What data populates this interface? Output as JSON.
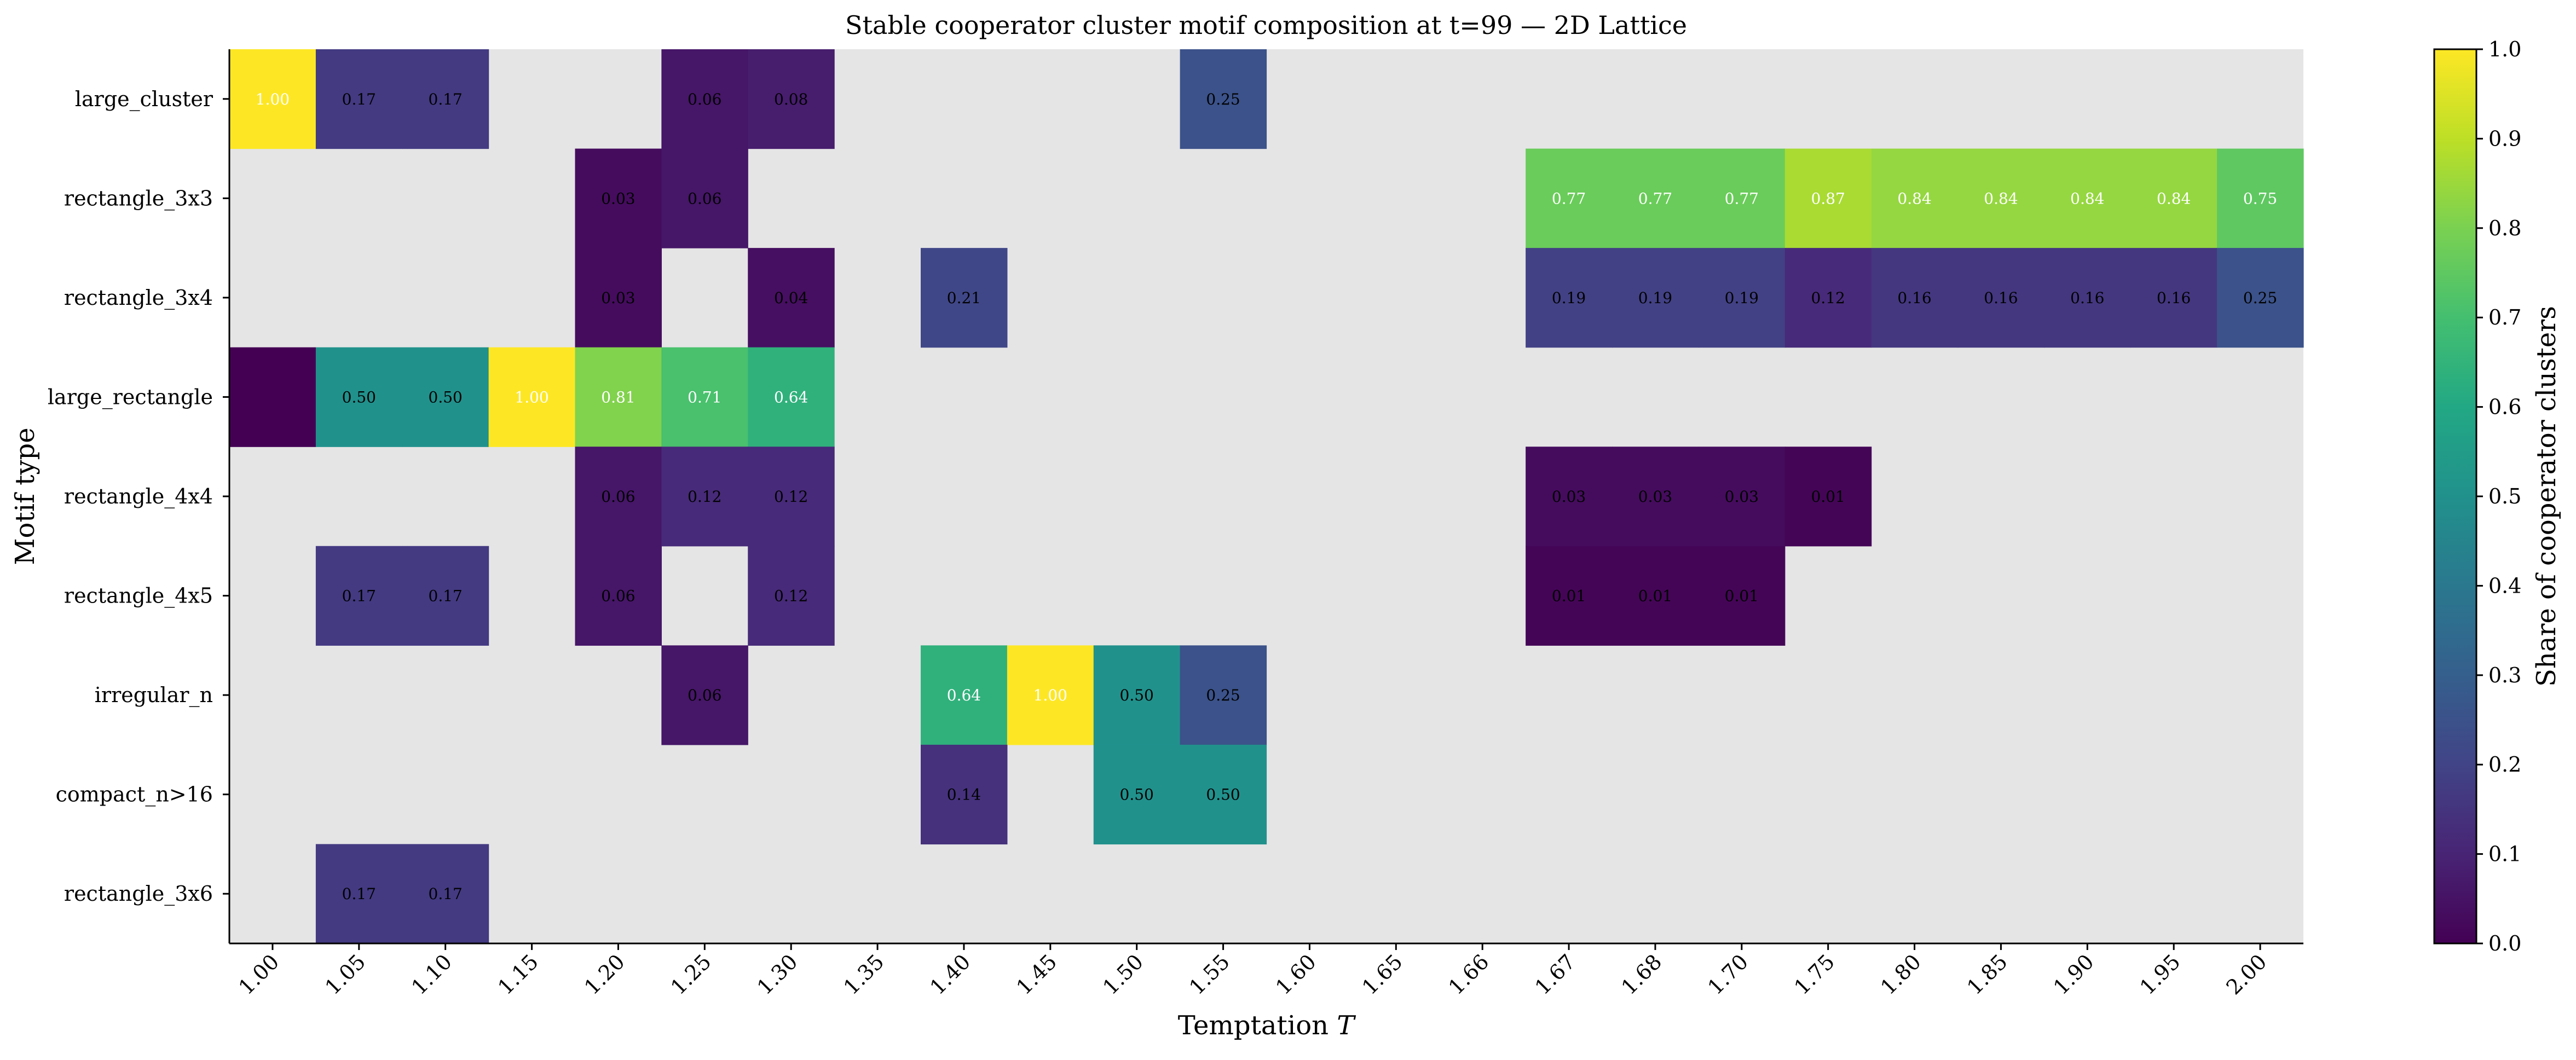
{
  "chart_data": {
    "type": "heatmap",
    "title": "Stable cooperator cluster motif composition at t=99 — 2D Lattice",
    "xlabel_text": "Temptation ",
    "xlabel_var": "T",
    "ylabel": "Motif type",
    "x": [
      "1.00",
      "1.05",
      "1.10",
      "1.15",
      "1.20",
      "1.25",
      "1.30",
      "1.35",
      "1.40",
      "1.45",
      "1.50",
      "1.55",
      "1.60",
      "1.65",
      "1.66",
      "1.67",
      "1.68",
      "1.70",
      "1.75",
      "1.80",
      "1.85",
      "1.90",
      "1.95",
      "2.00"
    ],
    "y": [
      "large_cluster",
      "rectangle_3x3",
      "rectangle_3x4",
      "large_rectangle",
      "rectangle_4x4",
      "rectangle_4x5",
      "irregular_n",
      "compact_n>16",
      "rectangle_3x6"
    ],
    "values": [
      [
        1.0,
        0.17,
        0.17,
        null,
        null,
        0.06,
        0.08,
        null,
        null,
        null,
        null,
        0.25,
        null,
        null,
        null,
        null,
        null,
        null,
        null,
        null,
        null,
        null,
        null,
        null
      ],
      [
        null,
        null,
        null,
        null,
        0.03,
        0.06,
        null,
        null,
        null,
        null,
        null,
        null,
        null,
        null,
        null,
        0.77,
        0.77,
        0.77,
        0.87,
        0.84,
        0.84,
        0.84,
        0.84,
        0.75
      ],
      [
        null,
        null,
        null,
        null,
        0.03,
        null,
        0.04,
        null,
        0.21,
        null,
        null,
        null,
        null,
        null,
        null,
        0.19,
        0.19,
        0.19,
        0.12,
        0.16,
        0.16,
        0.16,
        0.16,
        0.25
      ],
      [
        0.0,
        0.5,
        0.5,
        1.0,
        0.81,
        0.71,
        0.64,
        null,
        null,
        null,
        null,
        null,
        null,
        null,
        null,
        null,
        null,
        null,
        null,
        null,
        null,
        null,
        null,
        null
      ],
      [
        null,
        null,
        null,
        null,
        0.06,
        0.12,
        0.12,
        null,
        null,
        null,
        null,
        null,
        null,
        null,
        null,
        0.03,
        0.03,
        0.03,
        0.01,
        null,
        null,
        null,
        null,
        null
      ],
      [
        null,
        0.17,
        0.17,
        null,
        0.06,
        null,
        0.12,
        null,
        null,
        null,
        null,
        null,
        null,
        null,
        null,
        0.01,
        0.01,
        0.01,
        null,
        null,
        null,
        null,
        null,
        null
      ],
      [
        null,
        null,
        null,
        null,
        null,
        0.06,
        null,
        null,
        0.64,
        1.0,
        0.5,
        0.25,
        null,
        null,
        null,
        null,
        null,
        null,
        null,
        null,
        null,
        null,
        null,
        null
      ],
      [
        null,
        null,
        null,
        null,
        null,
        null,
        null,
        null,
        0.14,
        null,
        0.5,
        0.5,
        null,
        null,
        null,
        null,
        null,
        null,
        null,
        null,
        null,
        null,
        null,
        null
      ],
      [
        null,
        0.17,
        0.17,
        null,
        null,
        null,
        null,
        null,
        null,
        null,
        null,
        null,
        null,
        null,
        null,
        null,
        null,
        null,
        null,
        null,
        null,
        null,
        null,
        null
      ]
    ],
    "cell_labels": [
      [
        "1.00",
        "0.17",
        "0.17",
        "",
        "",
        "0.06",
        "0.08",
        "",
        "",
        "",
        "",
        "0.25",
        "",
        "",
        "",
        "",
        "",
        "",
        "",
        "",
        "",
        "",
        "",
        ""
      ],
      [
        "",
        "",
        "",
        "",
        "0.03",
        "0.06",
        "",
        "",
        "",
        "",
        "",
        "",
        "",
        "",
        "",
        "0.77",
        "0.77",
        "0.77",
        "0.87",
        "0.84",
        "0.84",
        "0.84",
        "0.84",
        "0.75"
      ],
      [
        "",
        "",
        "",
        "",
        "0.03",
        "",
        "0.04",
        "",
        "0.21",
        "",
        "",
        "",
        "",
        "",
        "",
        "0.19",
        "0.19",
        "0.19",
        "0.12",
        "0.16",
        "0.16",
        "0.16",
        "0.16",
        "0.25"
      ],
      [
        "",
        "0.50",
        "0.50",
        "1.00",
        "0.81",
        "0.71",
        "0.64",
        "",
        "",
        "",
        "",
        "",
        "",
        "",
        "",
        "",
        "",
        "",
        "",
        "",
        "",
        "",
        "",
        ""
      ],
      [
        "",
        "",
        "",
        "",
        "0.06",
        "0.12",
        "0.12",
        "",
        "",
        "",
        "",
        "",
        "",
        "",
        "",
        "0.03",
        "0.03",
        "0.03",
        "0.01",
        "",
        "",
        "",
        "",
        ""
      ],
      [
        "",
        "0.17",
        "0.17",
        "",
        "0.06",
        "",
        "0.12",
        "",
        "",
        "",
        "",
        "",
        "",
        "",
        "",
        "0.01",
        "0.01",
        "0.01",
        "",
        "",
        "",
        "",
        "",
        ""
      ],
      [
        "",
        "",
        "",
        "",
        "",
        "0.06",
        "",
        "",
        "0.64",
        "1.00",
        "0.50",
        "0.25",
        "",
        "",
        "",
        "",
        "",
        "",
        "",
        "",
        "",
        "",
        "",
        ""
      ],
      [
        "",
        "",
        "",
        "",
        "",
        "",
        "",
        "",
        "0.14",
        "",
        "0.50",
        "0.50",
        "",
        "",
        "",
        "",
        "",
        "",
        "",
        "",
        "",
        "",
        "",
        ""
      ],
      [
        "",
        "0.17",
        "0.17",
        "",
        "",
        "",
        "",
        "",
        "",
        "",
        "",
        "",
        "",
        "",
        "",
        "",
        "",
        "",
        "",
        "",
        "",
        "",
        "",
        ""
      ]
    ],
    "zlim": [
      0,
      1
    ],
    "colormap": "viridis",
    "missing_color": "#e5e5e5",
    "colorbar": {
      "label": "Share of cooperator clusters",
      "ticks": [
        "0.0",
        "0.1",
        "0.2",
        "0.3",
        "0.4",
        "0.5",
        "0.6",
        "0.7",
        "0.8",
        "0.9",
        "1.0"
      ]
    }
  }
}
